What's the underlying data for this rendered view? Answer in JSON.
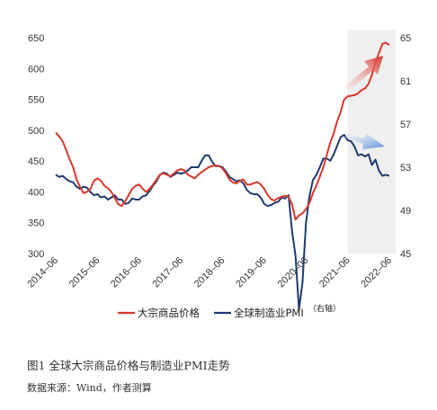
{
  "chart_data": {
    "type": "line",
    "x": [
      "2014-06",
      "2014-07",
      "2014-08",
      "2014-09",
      "2014-10",
      "2014-11",
      "2014-12",
      "2015-01",
      "2015-02",
      "2015-03",
      "2015-04",
      "2015-05",
      "2015-06",
      "2015-07",
      "2015-08",
      "2015-09",
      "2015-10",
      "2015-11",
      "2015-12",
      "2016-01",
      "2016-02",
      "2016-03",
      "2016-04",
      "2016-05",
      "2016-06",
      "2016-07",
      "2016-08",
      "2016-09",
      "2016-10",
      "2016-11",
      "2016-12",
      "2017-01",
      "2017-02",
      "2017-03",
      "2017-04",
      "2017-05",
      "2017-06",
      "2017-07",
      "2017-08",
      "2017-09",
      "2017-10",
      "2017-11",
      "2017-12",
      "2018-01",
      "2018-02",
      "2018-03",
      "2018-04",
      "2018-05",
      "2018-06",
      "2018-07",
      "2018-08",
      "2018-09",
      "2018-10",
      "2018-11",
      "2018-12",
      "2019-01",
      "2019-02",
      "2019-03",
      "2019-04",
      "2019-05",
      "2019-06",
      "2019-07",
      "2019-08",
      "2019-09",
      "2019-10",
      "2019-11",
      "2019-12",
      "2020-01",
      "2020-02",
      "2020-03",
      "2020-04",
      "2020-05",
      "2020-06",
      "2020-07",
      "2020-08",
      "2020-09",
      "2020-10",
      "2020-11",
      "2020-12",
      "2021-01",
      "2021-02",
      "2021-03",
      "2021-04",
      "2021-05",
      "2021-06",
      "2021-07",
      "2021-08",
      "2021-09",
      "2021-10",
      "2021-11",
      "2021-12",
      "2022-01",
      "2022-02",
      "2022-03",
      "2022-04",
      "2022-05",
      "2022-06"
    ],
    "series": [
      {
        "name": "大宗商品价格",
        "axis": "left",
        "color": "#d7372b",
        "values": [
          496,
          490,
          482,
          468,
          453,
          440,
          420,
          408,
          398,
          400,
          405,
          418,
          422,
          418,
          410,
          406,
          400,
          390,
          380,
          377,
          385,
          395,
          405,
          410,
          412,
          405,
          400,
          405,
          412,
          420,
          428,
          430,
          428,
          425,
          430,
          435,
          437,
          435,
          428,
          425,
          422,
          428,
          432,
          436,
          440,
          442,
          443,
          442,
          438,
          430,
          420,
          415,
          414,
          418,
          420,
          412,
          412,
          414,
          416,
          412,
          405,
          395,
          388,
          386,
          390,
          392,
          394,
          392,
          380,
          355,
          362,
          365,
          372,
          382,
          398,
          410,
          425,
          440,
          460,
          480,
          495,
          515,
          530,
          550,
          555,
          556,
          557,
          560,
          565,
          568,
          575,
          590,
          610,
          625,
          640,
          642,
          638
        ]
      },
      {
        "name": "全球制造业PMI",
        "axis": "right",
        "color": "#1f3a6e",
        "values": [
          52.3,
          52.1,
          52.2,
          51.9,
          51.7,
          51.6,
          51.2,
          51.0,
          51.2,
          51.1,
          50.7,
          50.4,
          50.5,
          50.2,
          50.3,
          50.0,
          50.2,
          50.4,
          50.0,
          50.0,
          49.6,
          49.7,
          50.1,
          50.0,
          50.0,
          50.3,
          50.4,
          50.8,
          51.3,
          51.7,
          52.3,
          52.5,
          52.4,
          52.1,
          52.3,
          52.5,
          52.4,
          52.5,
          52.7,
          53.0,
          53.0,
          53.0,
          53.6,
          54.1,
          54.1,
          53.5,
          53.1,
          53.1,
          53.0,
          52.6,
          52.1,
          51.9,
          51.7,
          51.8,
          51.5,
          50.9,
          50.6,
          50.5,
          50.5,
          50.2,
          49.6,
          49.4,
          49.5,
          49.7,
          49.8,
          50.2,
          50.1,
          50.4,
          47.1,
          44.8,
          39.8,
          42.3,
          47.8,
          50.3,
          51.8,
          52.3,
          53.0,
          53.8,
          53.8,
          53.6,
          54.2,
          55.0,
          55.8,
          56.0,
          55.5,
          55.4,
          54.9,
          54.1,
          54.2,
          54.0,
          54.2,
          53.2,
          53.7,
          52.7,
          52.2,
          52.3,
          52.2
        ]
      }
    ],
    "xticks": [
      "2014–06",
      "2015–06",
      "2016–06",
      "2017–06",
      "2018–06",
      "2019–06",
      "2020–06",
      "2021–06",
      "2022–06"
    ],
    "yleft": {
      "ticks": [
        "650",
        "600",
        "550",
        "500",
        "450",
        "400",
        "350",
        "300"
      ],
      "lim": [
        300,
        650
      ]
    },
    "yright": {
      "ticks": [
        "65",
        "61",
        "57",
        "53",
        "49",
        "45"
      ],
      "lim": [
        45,
        65
      ]
    },
    "shaded_region": [
      "2021-06",
      "2022-06"
    ],
    "arrows": [
      {
        "series": "大宗商品价格",
        "direction": "up",
        "color": "#e04a42"
      },
      {
        "series": "全球制造业PMI",
        "direction": "down",
        "color": "#5b8fd6"
      }
    ],
    "legend": {
      "position": "bottom",
      "items": [
        "大宗商品价格",
        "全球制造业PMI"
      ],
      "note": "（右轴）"
    },
    "grid": false
  },
  "caption": "图1 全球大宗商品价格与制造业PMI走势",
  "source": "数据来源：Wind，作者测算"
}
